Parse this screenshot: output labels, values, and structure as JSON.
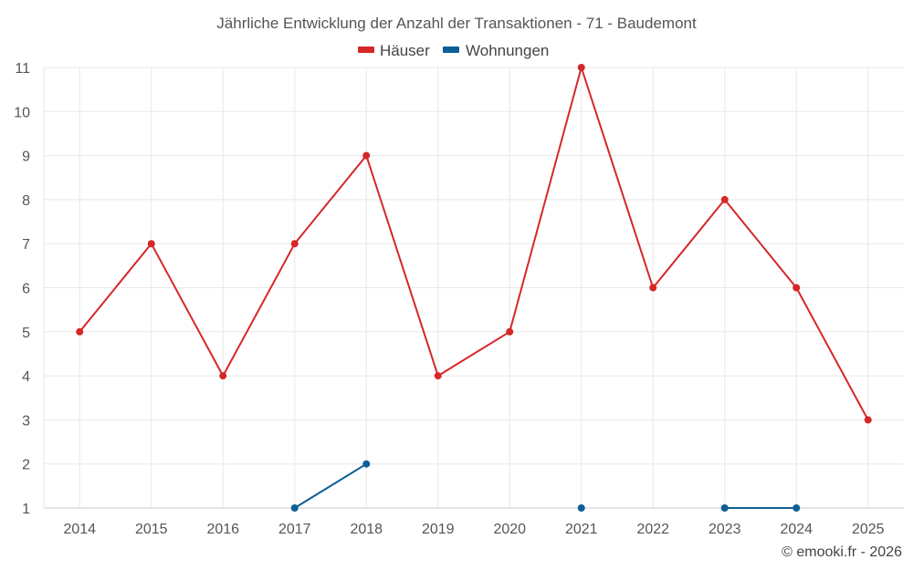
{
  "chart_data": {
    "type": "line",
    "title": "Jährliche Entwicklung der Anzahl der Transaktionen - 71 - Baudemont",
    "categories": [
      "2014",
      "2015",
      "2016",
      "2017",
      "2018",
      "2019",
      "2020",
      "2021",
      "2022",
      "2023",
      "2024",
      "2025"
    ],
    "ylim": [
      1,
      11
    ],
    "yticks": [
      1,
      2,
      3,
      4,
      5,
      6,
      7,
      8,
      9,
      10,
      11
    ],
    "grid": true,
    "legend_position": "top-center",
    "series": [
      {
        "name": "Häuser",
        "color": "#d62728",
        "values": [
          5,
          7,
          4,
          7,
          9,
          4,
          5,
          11,
          6,
          8,
          6,
          3
        ]
      },
      {
        "name": "Wohnungen",
        "color": "#0e5e96",
        "values": [
          null,
          null,
          null,
          1,
          2,
          null,
          null,
          1,
          null,
          1,
          1,
          null
        ]
      }
    ],
    "credit": "© emooki.fr - 2026"
  }
}
